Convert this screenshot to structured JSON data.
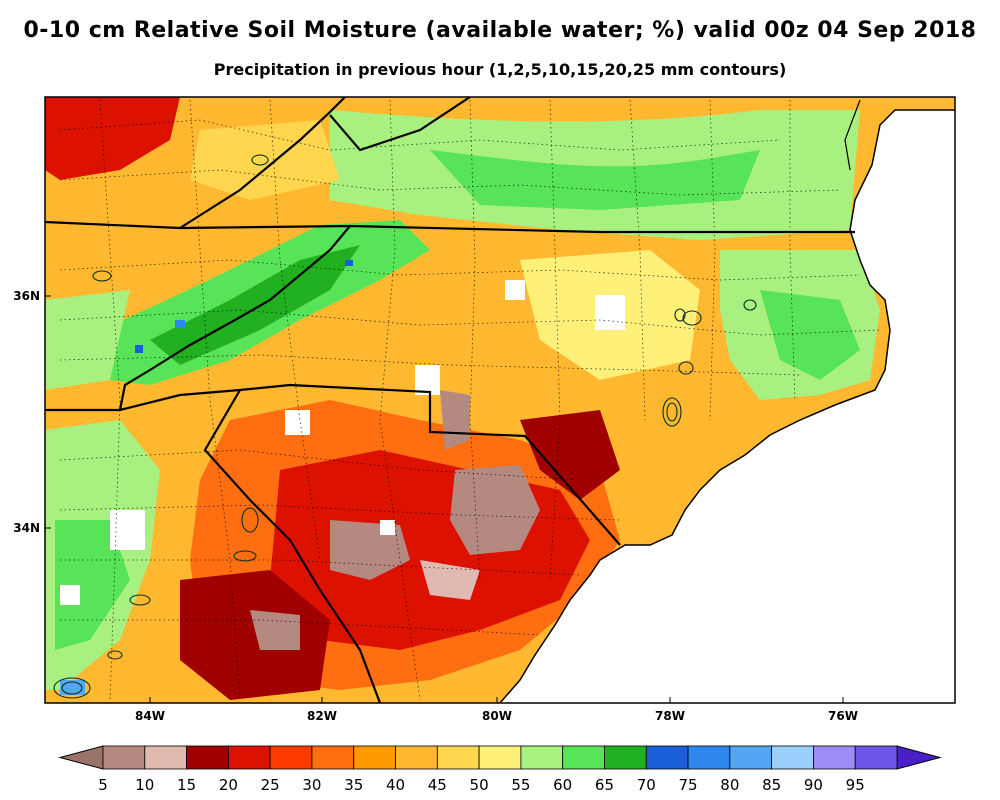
{
  "title": "0-10 cm Relative Soil Moisture (available water; %) valid 00z 04 Sep 2018",
  "subtitle": "Precipitation in previous hour (1,2,5,10,15,20,25 mm contours)",
  "map": {
    "lon_ticks": [
      "84W",
      "82W",
      "80W",
      "78W",
      "76W"
    ],
    "lat_ticks": [
      "36N",
      "34N"
    ],
    "ocean_color": "#ffffff",
    "border_color": "#000000"
  },
  "colorbar": {
    "labels": [
      "5",
      "10",
      "15",
      "20",
      "25",
      "30",
      "35",
      "40",
      "45",
      "50",
      "55",
      "60",
      "65",
      "70",
      "75",
      "80",
      "85",
      "90",
      "95"
    ],
    "under_color": "#9a7468",
    "over_color": "#4a1ec8",
    "colors": [
      "#b48a80",
      "#e0bab0",
      "#a00000",
      "#dd1100",
      "#ff3a00",
      "#ff6e10",
      "#ff9a00",
      "#ffb830",
      "#ffd64e",
      "#fff07a",
      "#a8f080",
      "#58e458",
      "#20b020",
      "#1a5ed8",
      "#2e86ec",
      "#52a6f4",
      "#9cd0fc",
      "#9c8cf4",
      "#6c56e8"
    ]
  }
}
